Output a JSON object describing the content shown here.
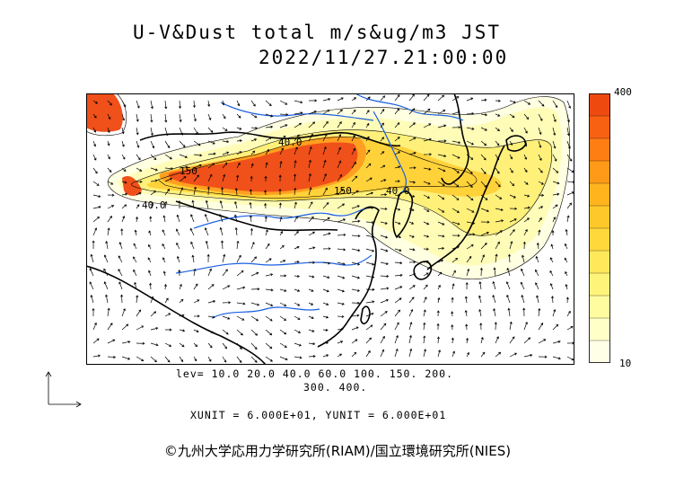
{
  "header": {
    "title_line1": "U-V&Dust total m/s&ug/m3 JST",
    "title_line2": "2022/11/27.21:00:00"
  },
  "colorbar": {
    "max_label": "400",
    "min_label": "10",
    "colors": [
      "#ffffe8",
      "#ffffc8",
      "#fffca0",
      "#fff47a",
      "#ffe85a",
      "#ffd83c",
      "#ffc82a",
      "#ffb41e",
      "#ff9a18",
      "#ff7e14",
      "#f86012",
      "#ee4a10"
    ]
  },
  "map": {
    "contour_labels": [
      "40.0",
      "150",
      "40.0",
      "150",
      "40.0"
    ],
    "land_color": "#ffffff",
    "coast_color": "#000000",
    "river_color": "#1a5fe0",
    "dust_peak_color": "#f0501a"
  },
  "legend": {
    "lev_line1": "lev= 10.0 20.0 40.0 60.0 100. 150. 200.",
    "lev_line2": "300. 400."
  },
  "units": {
    "text": "XUNIT = 6.000E+01, YUNIT = 6.000E+01"
  },
  "footer": {
    "copyright": "©九州大学応用力学研究所(RIAM)/国立環境研究所(NIES)"
  }
}
